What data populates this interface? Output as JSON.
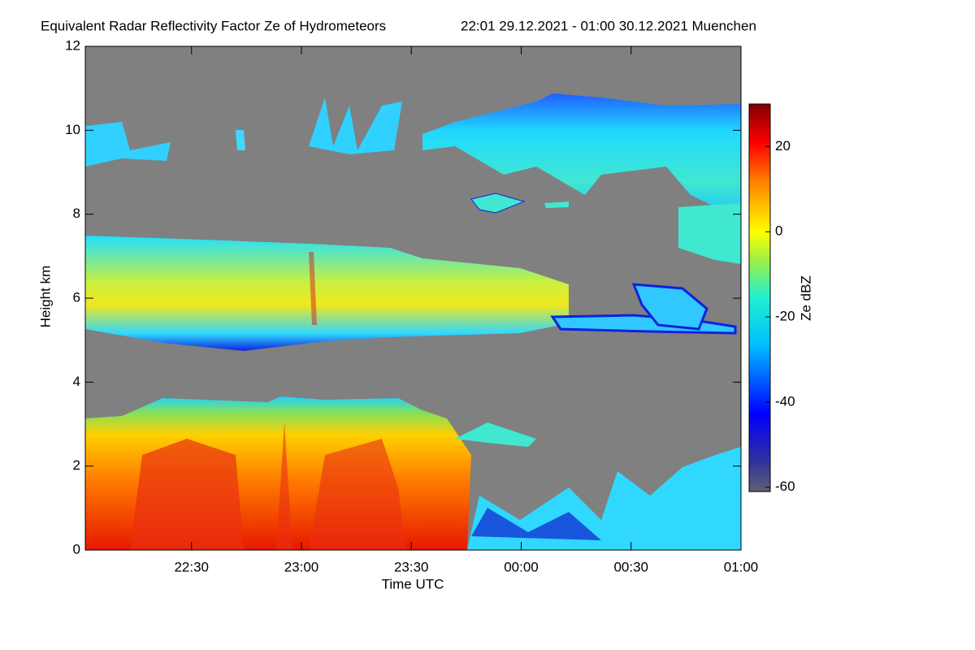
{
  "chart_data": {
    "type": "heatmap",
    "title": "Equivalent Radar Reflectivity Factor Ze of Hydrometeors",
    "subtitle": "22:01 29.12.2021 - 01:00 30.12.2021 Muenchen",
    "x_label": "Time UTC",
    "y_label": "Height km",
    "xlim": [
      "22:01",
      "01:00"
    ],
    "xticks": [
      "22:30",
      "23:00",
      "23:30",
      "00:00",
      "00:30",
      "01:00"
    ],
    "ylim": [
      0,
      12
    ],
    "yticks": [
      0,
      2,
      4,
      6,
      8,
      10,
      12
    ],
    "colorbar": {
      "label": "Ze dBZ",
      "lim": [
        -61,
        30
      ],
      "ticks": [
        -60,
        -40,
        -20,
        0,
        20
      ]
    }
  }
}
